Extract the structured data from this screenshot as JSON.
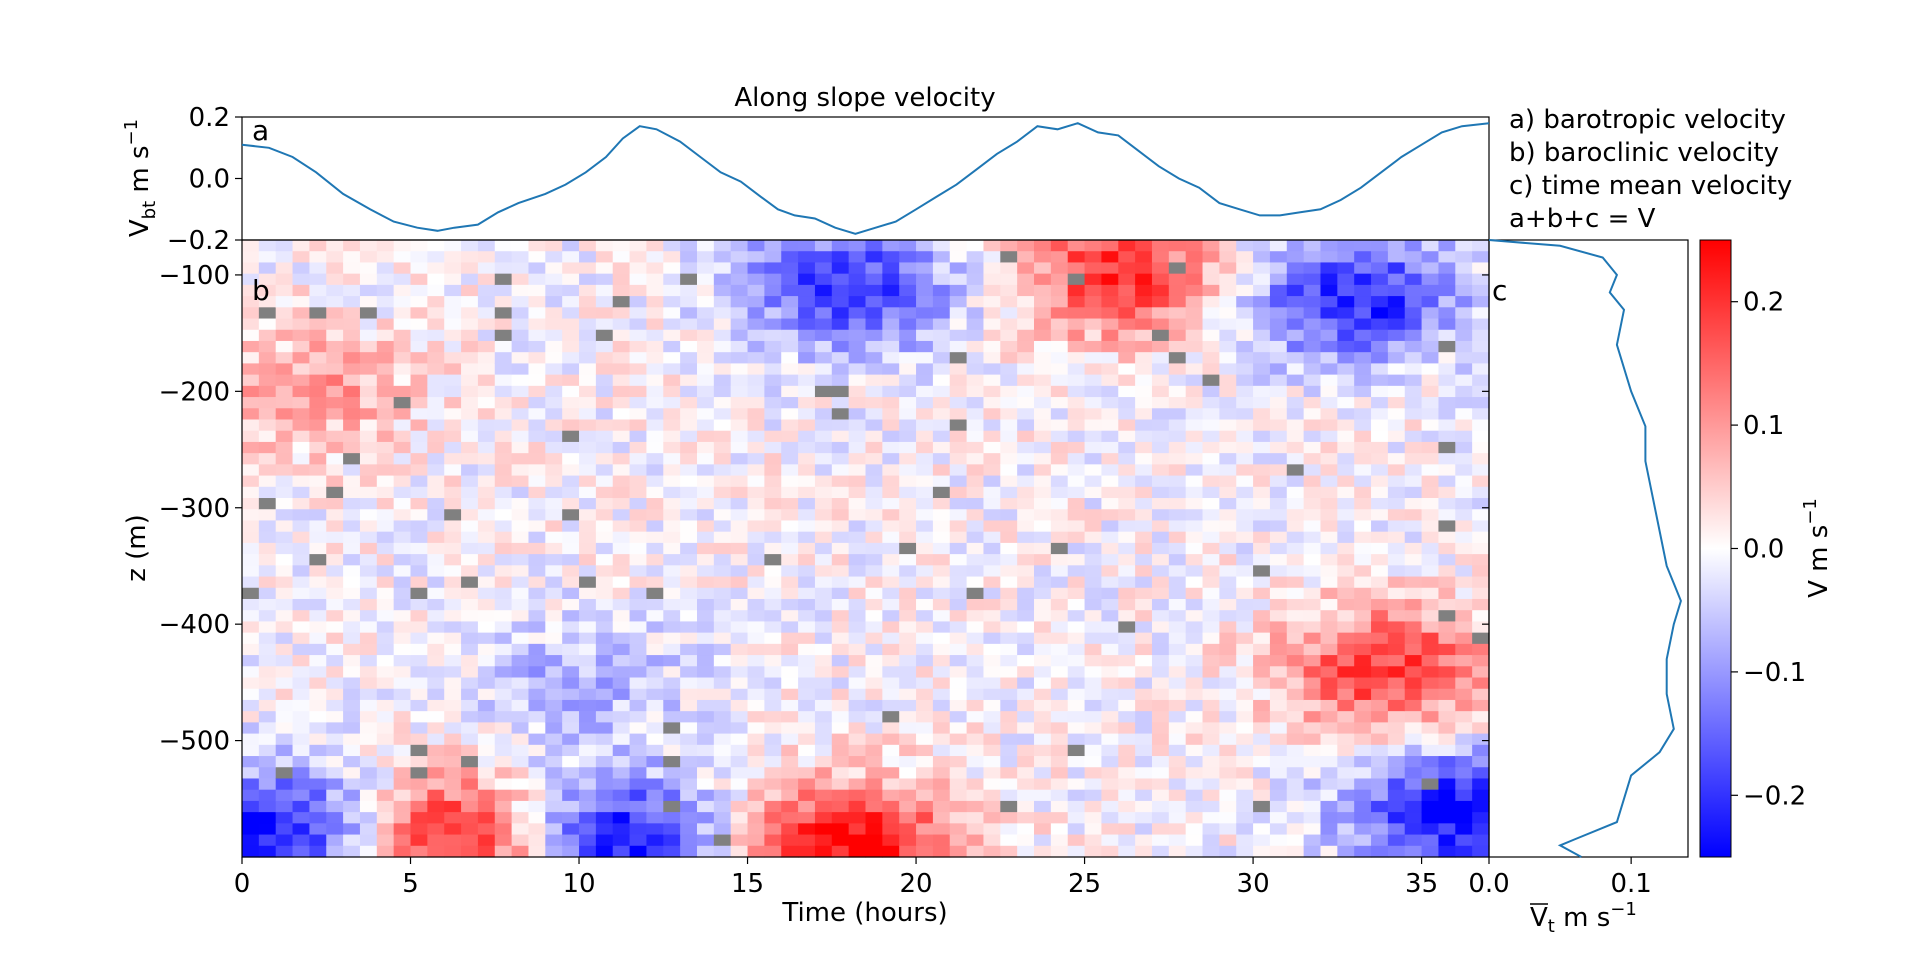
{
  "chart_data": [
    {
      "panel": "a",
      "type": "line",
      "title": "Along slope velocity",
      "ylabel": "V",
      "ylabel_sub": "bt",
      "ylabel_units": "m s",
      "ylabel_sup": "−1",
      "xlim": [
        0,
        37
      ],
      "ylim": [
        -0.2,
        0.2
      ],
      "yticks": [
        0.2,
        0.0,
        -0.2
      ],
      "ytick_labels": [
        "0.2",
        "0.0",
        "−0.2"
      ],
      "color": "#1f77b4",
      "points": [
        [
          0,
          0.11
        ],
        [
          0.8,
          0.1
        ],
        [
          1.5,
          0.07
        ],
        [
          2.2,
          0.02
        ],
        [
          3,
          -0.05
        ],
        [
          3.8,
          -0.1
        ],
        [
          4.5,
          -0.14
        ],
        [
          5.2,
          -0.16
        ],
        [
          5.8,
          -0.17
        ],
        [
          6.3,
          -0.16
        ],
        [
          7,
          -0.15
        ],
        [
          7.6,
          -0.11
        ],
        [
          8.2,
          -0.08
        ],
        [
          9,
          -0.05
        ],
        [
          9.6,
          -0.02
        ],
        [
          10.2,
          0.02
        ],
        [
          10.8,
          0.07
        ],
        [
          11.3,
          0.13
        ],
        [
          11.8,
          0.17
        ],
        [
          12.3,
          0.16
        ],
        [
          13,
          0.12
        ],
        [
          13.6,
          0.07
        ],
        [
          14.2,
          0.02
        ],
        [
          14.8,
          -0.01
        ],
        [
          15.4,
          -0.06
        ],
        [
          15.9,
          -0.1
        ],
        [
          16.4,
          -0.12
        ],
        [
          17,
          -0.13
        ],
        [
          17.6,
          -0.16
        ],
        [
          18.2,
          -0.18
        ],
        [
          18.8,
          -0.16
        ],
        [
          19.4,
          -0.14
        ],
        [
          20,
          -0.1
        ],
        [
          20.6,
          -0.06
        ],
        [
          21.2,
          -0.02
        ],
        [
          21.8,
          0.03
        ],
        [
          22.4,
          0.08
        ],
        [
          23,
          0.12
        ],
        [
          23.6,
          0.17
        ],
        [
          24.2,
          0.16
        ],
        [
          24.8,
          0.18
        ],
        [
          25.4,
          0.15
        ],
        [
          26,
          0.14
        ],
        [
          26.6,
          0.09
        ],
        [
          27.2,
          0.04
        ],
        [
          27.8,
          0.0
        ],
        [
          28.4,
          -0.03
        ],
        [
          29,
          -0.08
        ],
        [
          29.6,
          -0.1
        ],
        [
          30.2,
          -0.12
        ],
        [
          30.8,
          -0.12
        ],
        [
          31.4,
          -0.11
        ],
        [
          32,
          -0.1
        ],
        [
          32.6,
          -0.07
        ],
        [
          33.2,
          -0.03
        ],
        [
          33.8,
          0.02
        ],
        [
          34.4,
          0.07
        ],
        [
          35,
          0.11
        ],
        [
          35.6,
          0.15
        ],
        [
          36.2,
          0.17
        ],
        [
          37,
          0.18
        ]
      ]
    },
    {
      "panel": "b",
      "type": "heatmap",
      "xlabel": "Time (hours)",
      "ylabel": "z (m)",
      "xlim": [
        0,
        37
      ],
      "ylim": [
        -600,
        -70
      ],
      "xticks": [
        0,
        5,
        10,
        15,
        20,
        25,
        30,
        35
      ],
      "xtick_labels": [
        "0",
        "5",
        "10",
        "15",
        "20",
        "25",
        "30",
        "35"
      ],
      "yticks": [
        -100,
        -200,
        -300,
        -400,
        -500
      ],
      "ytick_labels": [
        "−100",
        "−200",
        "−300",
        "−400",
        "−500"
      ],
      "colormap": "bwr",
      "vmin": -0.25,
      "vmax": 0.25,
      "missing_color": "#808080",
      "field_features": [
        {
          "t_center": 6.5,
          "z_center": -585,
          "value": 0.25
        },
        {
          "t_center": 18,
          "z_center": -590,
          "value": 0.25
        },
        {
          "t_center": 11,
          "z_center": -585,
          "value": -0.25
        },
        {
          "t_center": 1,
          "z_center": -580,
          "value": -0.25
        },
        {
          "t_center": 26,
          "z_center": -100,
          "value": 0.2
        },
        {
          "t_center": 18,
          "z_center": -110,
          "value": -0.2
        },
        {
          "t_center": 33,
          "z_center": -120,
          "value": -0.22
        },
        {
          "t_center": 34,
          "z_center": -440,
          "value": 0.2
        },
        {
          "t_center": 36,
          "z_center": -560,
          "value": -0.25
        },
        {
          "t_center": 2,
          "z_center": -200,
          "value": 0.1
        },
        {
          "t_center": 10,
          "z_center": -450,
          "value": -0.08
        }
      ]
    },
    {
      "panel": "c",
      "type": "line",
      "xlabel": "V",
      "xlabel_sub": "t",
      "xlabel_units": "m s",
      "xlabel_sup": "−1",
      "xlim": [
        0.0,
        0.14
      ],
      "ylim": [
        -600,
        -70
      ],
      "xticks": [
        0.0,
        0.1
      ],
      "xtick_labels": [
        "0.0",
        "0.1"
      ],
      "color": "#1f77b4",
      "points": [
        [
          0.0,
          -70
        ],
        [
          0.05,
          -75
        ],
        [
          0.08,
          -85
        ],
        [
          0.09,
          -100
        ],
        [
          0.085,
          -115
        ],
        [
          0.095,
          -130
        ],
        [
          0.09,
          -160
        ],
        [
          0.1,
          -200
        ],
        [
          0.11,
          -230
        ],
        [
          0.11,
          -260
        ],
        [
          0.115,
          -290
        ],
        [
          0.12,
          -320
        ],
        [
          0.125,
          -350
        ],
        [
          0.13,
          -365
        ],
        [
          0.135,
          -380
        ],
        [
          0.13,
          -400
        ],
        [
          0.125,
          -430
        ],
        [
          0.125,
          -460
        ],
        [
          0.13,
          -490
        ],
        [
          0.12,
          -510
        ],
        [
          0.1,
          -530
        ],
        [
          0.095,
          -550
        ],
        [
          0.09,
          -570
        ],
        [
          0.06,
          -585
        ],
        [
          0.05,
          -590
        ],
        [
          0.065,
          -600
        ]
      ]
    },
    {
      "panel": "colorbar",
      "type": "heatmap",
      "ylabel": "V m s",
      "ylabel_sup": "−1",
      "vmin": -0.25,
      "vmax": 0.25,
      "ticks": [
        0.2,
        0.1,
        0.0,
        -0.1,
        -0.2
      ],
      "tick_labels": [
        "0.2",
        "0.1",
        "0.0",
        "−0.1",
        "−0.2"
      ]
    }
  ],
  "panel_letters": {
    "a": "a",
    "b": "b",
    "c": "c"
  },
  "legend_lines": [
    "a) barotropic velocity",
    "b) baroclinic velocity",
    "c) time mean velocity",
    "a+b+c = V"
  ]
}
